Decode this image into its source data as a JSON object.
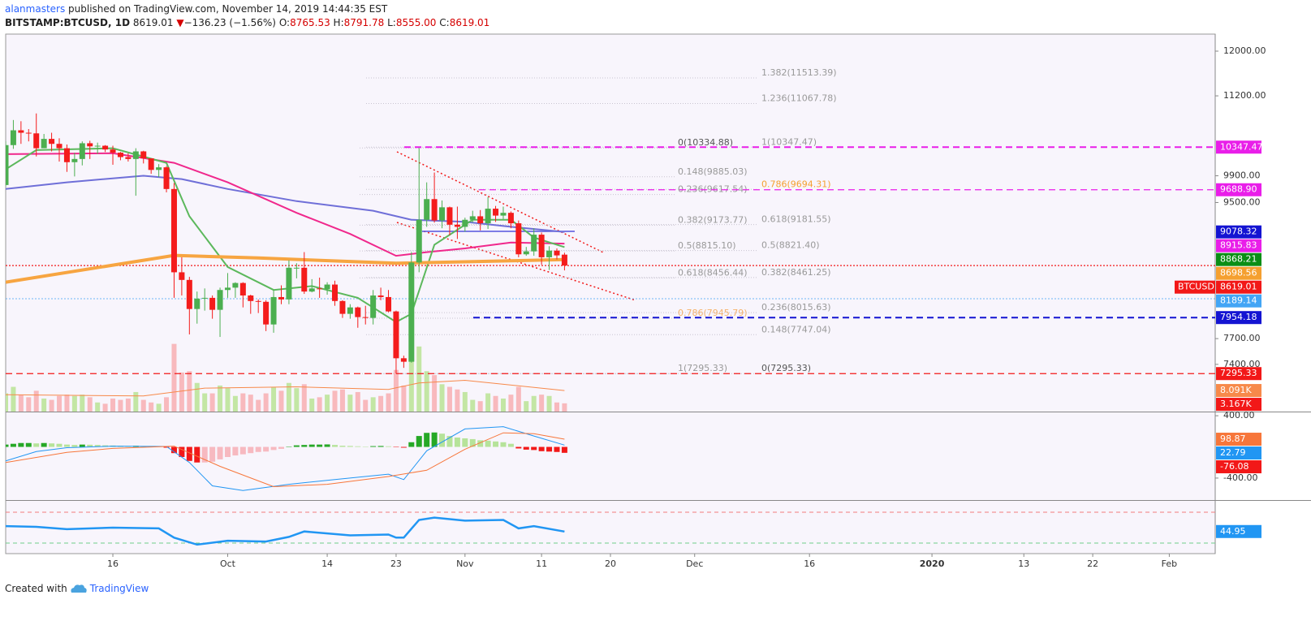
{
  "header": {
    "author": "alanmasters",
    "published": "published on TradingView.com, November 14, 2019 14:44:35 EST",
    "symbol": "BITSTAMP:BTCUSD, 1D",
    "last": "8619.01",
    "arrow": "▼",
    "change": "−136.23 (−1.56%)",
    "o_label": "O:",
    "o": "8765.53",
    "h_label": "H:",
    "h": "8791.78",
    "l_label": "L:",
    "l": "8555.00",
    "c_label": "C:",
    "c": "8619.01"
  },
  "footer": {
    "created": "Created with",
    "brand": "TradingView"
  },
  "chart_data": {
    "type": "candlestick",
    "log_scale": true,
    "up_color": "#4caf50",
    "down_color": "#f41c1c",
    "xlim": [
      "2019-09-02",
      "2020-02-07"
    ],
    "xticks": [
      {
        "value": "2019-09-16",
        "label": "16"
      },
      {
        "value": "2019-10-01",
        "label": "Oct"
      },
      {
        "value": "2019-10-14",
        "label": "14"
      },
      {
        "value": "2019-10-23",
        "label": "23"
      },
      {
        "value": "2019-11-01",
        "label": "Nov"
      },
      {
        "value": "2019-11-11",
        "label": "11"
      },
      {
        "value": "2019-11-20",
        "label": "20"
      },
      {
        "value": "2019-12-01",
        "label": "Dec"
      },
      {
        "value": "2019-12-16",
        "label": "16"
      },
      {
        "value": "2020-01-01",
        "label": "2020"
      },
      {
        "value": "2020-01-13",
        "label": "13"
      },
      {
        "value": "2020-01-22",
        "label": "22"
      },
      {
        "value": "2020-02-01",
        "label": "Feb"
      }
    ],
    "ylim": [
      6880,
      12320
    ],
    "yticks": [
      {
        "value": 12000,
        "label": "12000.00"
      },
      {
        "value": 11200,
        "label": "11200.00"
      },
      {
        "value": 9900,
        "label": "9900.00"
      },
      {
        "value": 9500,
        "label": "9500.00"
      },
      {
        "value": 7700,
        "label": "7700.00"
      },
      {
        "value": 7400,
        "label": "7400.00"
      }
    ],
    "x": [
      "2019-09-02",
      "2019-09-03",
      "2019-09-04",
      "2019-09-05",
      "2019-09-06",
      "2019-09-07",
      "2019-09-08",
      "2019-09-09",
      "2019-09-10",
      "2019-09-11",
      "2019-09-12",
      "2019-09-13",
      "2019-09-14",
      "2019-09-15",
      "2019-09-16",
      "2019-09-17",
      "2019-09-18",
      "2019-09-19",
      "2019-09-20",
      "2019-09-21",
      "2019-09-22",
      "2019-09-23",
      "2019-09-24",
      "2019-09-25",
      "2019-09-26",
      "2019-09-27",
      "2019-09-28",
      "2019-09-29",
      "2019-09-30",
      "2019-10-01",
      "2019-10-02",
      "2019-10-03",
      "2019-10-04",
      "2019-10-05",
      "2019-10-06",
      "2019-10-07",
      "2019-10-08",
      "2019-10-09",
      "2019-10-10",
      "2019-10-11",
      "2019-10-12",
      "2019-10-13",
      "2019-10-14",
      "2019-10-15",
      "2019-10-16",
      "2019-10-17",
      "2019-10-18",
      "2019-10-19",
      "2019-10-20",
      "2019-10-21",
      "2019-10-22",
      "2019-10-23",
      "2019-10-24",
      "2019-10-25",
      "2019-10-26",
      "2019-10-27",
      "2019-10-28",
      "2019-10-29",
      "2019-10-30",
      "2019-10-31",
      "2019-11-01",
      "2019-11-02",
      "2019-11-03",
      "2019-11-04",
      "2019-11-05",
      "2019-11-06",
      "2019-11-07",
      "2019-11-08",
      "2019-11-09",
      "2019-11-10",
      "2019-11-11",
      "2019-11-12",
      "2019-11-13",
      "2019-11-14"
    ],
    "open": [
      9760,
      10380,
      10620,
      10580,
      10570,
      10330,
      10480,
      10400,
      10330,
      10110,
      10160,
      10410,
      10360,
      10370,
      10310,
      10260,
      10190,
      10160,
      10280,
      10170,
      9990,
      10030,
      9700,
      8530,
      8430,
      8060,
      8190,
      8200,
      8050,
      8300,
      8330,
      8390,
      8230,
      8160,
      8150,
      7870,
      8210,
      8180,
      8590,
      8590,
      8280,
      8320,
      8310,
      8370,
      8160,
      8000,
      8080,
      7960,
      7950,
      8230,
      8210,
      8030,
      7470,
      7430,
      8660,
      9250,
      9550,
      9240,
      9430,
      9180,
      9150,
      9250,
      9300,
      9200,
      9410,
      9310,
      9350,
      9200,
      8770,
      8810,
      9040,
      8730,
      8820,
      8765.53
    ],
    "high": [
      10440,
      10790,
      10770,
      10640,
      10900,
      10560,
      10580,
      10490,
      10390,
      10260,
      10440,
      10450,
      10420,
      10380,
      10370,
      10270,
      10250,
      10330,
      10290,
      10170,
      10080,
      10050,
      9790,
      8730,
      8470,
      8280,
      8320,
      8230,
      8330,
      8520,
      8400,
      8400,
      8240,
      8180,
      8170,
      8300,
      8360,
      8690,
      8650,
      8800,
      8440,
      8460,
      8400,
      8420,
      8170,
      8120,
      8090,
      8100,
      8300,
      8330,
      8300,
      8040,
      7500,
      8800,
      10334.88,
      9800,
      9950,
      9530,
      9440,
      9440,
      9280,
      9380,
      9390,
      9580,
      9450,
      9440,
      9370,
      9240,
      8870,
      9130,
      9070,
      8880,
      8850,
      8791.78
    ],
    "low": [
      9740,
      10320,
      10400,
      10440,
      10200,
      10330,
      10280,
      10120,
      9960,
      9890,
      10060,
      10160,
      10240,
      10270,
      10070,
      10140,
      10120,
      9600,
      10090,
      9930,
      9880,
      9650,
      8200,
      8230,
      7750,
      7880,
      8040,
      7940,
      7720,
      8200,
      8200,
      8080,
      8000,
      8010,
      7790,
      7770,
      8120,
      8120,
      8450,
      8250,
      8270,
      8200,
      8240,
      8100,
      7950,
      7940,
      7830,
      7870,
      7870,
      8170,
      8020,
      7295.33,
      7360,
      7420,
      8530,
      9150,
      9210,
      9130,
      9030,
      8980,
      9080,
      9210,
      9100,
      9120,
      9220,
      9260,
      9130,
      8730,
      8750,
      8750,
      8630,
      8560,
      8700,
      8555
    ],
    "close": [
      10380,
      10620,
      10580,
      10570,
      10330,
      10480,
      10400,
      10330,
      10110,
      10160,
      10410,
      10360,
      10370,
      10310,
      10260,
      10190,
      10160,
      10280,
      10170,
      9990,
      10030,
      9700,
      8530,
      8430,
      8060,
      8190,
      8200,
      8050,
      8300,
      8330,
      8390,
      8230,
      8160,
      8150,
      7870,
      8210,
      8180,
      8590,
      8590,
      8280,
      8320,
      8310,
      8370,
      8160,
      8000,
      8080,
      7960,
      7950,
      8230,
      8210,
      8030,
      7470,
      7430,
      8660,
      9250,
      9550,
      9240,
      9430,
      9180,
      9150,
      9250,
      9300,
      9200,
      9410,
      9310,
      9350,
      9200,
      8770,
      8810,
      9040,
      8730,
      8820,
      8755.24,
      8619.01
    ],
    "moving_averages": [
      {
        "color": "#6f6fd8",
        "x": [
          "2019-09-02",
          "2019-09-10",
          "2019-09-20",
          "2019-09-25",
          "2019-10-01",
          "2019-10-10",
          "2019-10-20",
          "2019-10-25",
          "2019-11-01",
          "2019-11-07",
          "2019-11-14"
        ],
        "values": [
          9700,
          9800,
          9900,
          9850,
          9700,
          9520,
          9380,
          9250,
          9220,
          9150,
          9078.32
        ]
      },
      {
        "color": "#f0288c",
        "x": [
          "2019-09-02",
          "2019-09-16",
          "2019-09-24",
          "2019-10-01",
          "2019-10-10",
          "2019-10-17",
          "2019-10-23",
          "2019-10-27",
          "2019-11-01",
          "2019-11-07",
          "2019-11-14"
        ],
        "values": [
          10236,
          10250,
          10100,
          9800,
          9350,
          9050,
          8750,
          8800,
          8850,
          8930,
          8915.83
        ]
      },
      {
        "color": "#5cb85c",
        "x": [
          "2019-09-02",
          "2019-09-06",
          "2019-09-16",
          "2019-09-23",
          "2019-09-26",
          "2019-10-01",
          "2019-10-07",
          "2019-10-12",
          "2019-10-18",
          "2019-10-23",
          "2019-10-25",
          "2019-10-28",
          "2019-11-02",
          "2019-11-07",
          "2019-11-10",
          "2019-11-14"
        ],
        "values": [
          10000,
          10300,
          10330,
          10100,
          9300,
          8600,
          8300,
          8350,
          8200,
          7900,
          8000,
          8900,
          9250,
          9250,
          9000,
          8868.21
        ]
      },
      {
        "color": "#f7a541",
        "width": 4,
        "x": [
          "2019-09-02",
          "2019-09-24",
          "2019-10-05",
          "2019-10-23",
          "2019-11-14"
        ],
        "values": [
          8400,
          8755,
          8720,
          8650,
          8698.56
        ]
      }
    ],
    "fib_left": [
      {
        "value": 10334.88,
        "label": "0(10334.88)",
        "color": "#555"
      },
      {
        "value": 9885.03,
        "label": "0.148(9885.03)",
        "color": "#999"
      },
      {
        "value": 9617.54,
        "label": "0.236(9617.54)",
        "color": "#999"
      },
      {
        "value": 9173.77,
        "label": "0.382(9173.77)",
        "color": "#999"
      },
      {
        "value": 8815.1,
        "label": "0.5(8815.10)",
        "color": "#999"
      },
      {
        "value": 8456.44,
        "label": "0.618(8456.44)",
        "color": "#999"
      },
      {
        "value": 7945.79,
        "label": "0.786(7945.79)",
        "color": "#f5b26b"
      },
      {
        "value": 7295.33,
        "label": "1(7295.33)",
        "color": "#999"
      }
    ],
    "fib_right": [
      {
        "value": 11513.39,
        "label": "1.382(11513.39)",
        "color": "#999"
      },
      {
        "value": 11067.78,
        "label": "1.236(11067.78)",
        "color": "#999"
      },
      {
        "value": 10347.47,
        "label": "1(10347.47)",
        "color": "#999"
      },
      {
        "value": 9694.31,
        "label": "0.786(9694.31)",
        "color": "#f5a030"
      },
      {
        "value": 9181.55,
        "label": "0.618(9181.55)",
        "color": "#999"
      },
      {
        "value": 8821.4,
        "label": "0.5(8821.40)",
        "color": "#999"
      },
      {
        "value": 8461.25,
        "label": "0.382(8461.25)",
        "color": "#999"
      },
      {
        "value": 8015.63,
        "label": "0.236(8015.63)",
        "color": "#999"
      },
      {
        "value": 7747.04,
        "label": "0.148(7747.04)",
        "color": "#999"
      },
      {
        "value": 7295.33,
        "label": "0(7295.33)",
        "color": "#555"
      }
    ],
    "symbol_tag": "BTCUSD",
    "price_labels": [
      {
        "value": 10347.47,
        "label": "10347.47",
        "color": "#e91ee9",
        "line": "dashed"
      },
      {
        "value": 9688.9,
        "label": "9688.90",
        "color": "#e91ee9",
        "line": "dashed"
      },
      {
        "value": 9078.32,
        "label": "9078.32",
        "color": "#1414d2"
      },
      {
        "value": 8915.83,
        "label": "8915.83",
        "color": "#e91ee9"
      },
      {
        "value": 8868.21,
        "label": "8868.21",
        "color": "#0b8e16"
      },
      {
        "value": 8698.56,
        "label": "8698.56",
        "color": "#f5a030"
      },
      {
        "value": 8619.01,
        "label": "8619.01",
        "color": "#f21818",
        "line": "dotted"
      },
      {
        "value": 8189.14,
        "label": "8189.14",
        "color": "#42a5f5",
        "line": "dotted"
      },
      {
        "value": 7954.18,
        "label": "7954.18",
        "color": "#1414d2",
        "line": "dashed"
      },
      {
        "value": 7295.33,
        "label": "7295.33",
        "color": "#f21818",
        "line": "dashed"
      }
    ],
    "volume": {
      "ylim": [
        0,
        145000
      ],
      "values": [
        7000,
        9500,
        6500,
        5500,
        8000,
        5000,
        4500,
        6000,
        6500,
        6000,
        6500,
        5500,
        3500,
        3000,
        5000,
        4500,
        5000,
        7500,
        4500,
        3500,
        3000,
        5500,
        26000,
        15000,
        15500,
        11000,
        7000,
        7000,
        10000,
        9000,
        6000,
        7000,
        6500,
        4500,
        7000,
        9500,
        8000,
        11000,
        9000,
        10500,
        5000,
        5500,
        6500,
        8000,
        8500,
        6500,
        7500,
        4500,
        5500,
        6000,
        7000,
        16000,
        10000,
        22000,
        25000,
        15500,
        14000,
        10500,
        9500,
        8500,
        7500,
        4500,
        4000,
        7000,
        6000,
        5000,
        6500,
        9500,
        4000,
        6000,
        6500,
        6000,
        3500,
        3167
      ],
      "ma": {
        "color": "#f7894a",
        "x": [
          "2019-09-02",
          "2019-09-20",
          "2019-09-28",
          "2019-10-10",
          "2019-10-22",
          "2019-10-26",
          "2019-11-01",
          "2019-11-14"
        ],
        "values": [
          6500,
          6000,
          9000,
          9500,
          8500,
          11000,
          12000,
          8091
        ]
      },
      "labels": [
        {
          "value": 8091,
          "label": "8.091K",
          "color": "#f7894a"
        },
        {
          "value": 3167,
          "label": "3.167K",
          "color": "#f21818"
        }
      ]
    },
    "macd": {
      "ylim": [
        -682,
        443
      ],
      "yticks": [
        {
          "value": 400,
          "label": "400.00"
        },
        {
          "value": -400,
          "label": "-400.00"
        }
      ],
      "histogram": [
        30,
        40,
        50,
        50,
        45,
        50,
        45,
        40,
        30,
        25,
        30,
        28,
        25,
        20,
        18,
        15,
        12,
        15,
        10,
        5,
        3,
        -10,
        -80,
        -130,
        -180,
        -200,
        -200,
        -190,
        -160,
        -130,
        -110,
        -95,
        -80,
        -65,
        -60,
        -40,
        -25,
        5,
        20,
        25,
        30,
        30,
        32,
        25,
        15,
        12,
        8,
        5,
        10,
        12,
        8,
        -5,
        -10,
        60,
        140,
        180,
        185,
        170,
        140,
        120,
        110,
        100,
        85,
        80,
        70,
        60,
        40,
        -20,
        -35,
        -40,
        -55,
        -60,
        -65,
        -76.08
      ],
      "macd_line": {
        "color": "#2196f3",
        "x": [
          "2019-09-02",
          "2019-09-06",
          "2019-09-10",
          "2019-09-16",
          "2019-09-23",
          "2019-09-26",
          "2019-09-29",
          "2019-10-03",
          "2019-10-09",
          "2019-10-15",
          "2019-10-22",
          "2019-10-24",
          "2019-10-27",
          "2019-11-01",
          "2019-11-06",
          "2019-11-10",
          "2019-11-14"
        ],
        "values": [
          -180,
          -60,
          -10,
          10,
          5,
          -200,
          -500,
          -560,
          -480,
          -420,
          -350,
          -420,
          -50,
          230,
          260,
          140,
          22.79
        ]
      },
      "signal_line": {
        "color": "#f7763a",
        "x": [
          "2019-09-02",
          "2019-09-10",
          "2019-09-16",
          "2019-09-24",
          "2019-09-30",
          "2019-10-07",
          "2019-10-14",
          "2019-10-22",
          "2019-10-27",
          "2019-11-01",
          "2019-11-06",
          "2019-11-10",
          "2019-11-14"
        ],
        "values": [
          -200,
          -70,
          -20,
          10,
          -250,
          -510,
          -480,
          -380,
          -300,
          -30,
          180,
          170,
          98.87
        ]
      },
      "labels": [
        {
          "value": 98.87,
          "label": "98.87",
          "color": "#f7763a"
        },
        {
          "value": 22.79,
          "label": "22.79",
          "color": "#2196f3"
        },
        {
          "value": -76.08,
          "label": "-76.08",
          "color": "#f21818"
        }
      ]
    },
    "rsi": {
      "ylim": [
        18.4,
        84.7
      ],
      "bands": [
        {
          "value": 70,
          "color": "#f27b7b"
        },
        {
          "value": 30,
          "color": "#6fcf8a"
        }
      ],
      "color": "#2196f3",
      "x": [
        "2019-09-02",
        "2019-09-06",
        "2019-09-10",
        "2019-09-16",
        "2019-09-22",
        "2019-09-24",
        "2019-09-27",
        "2019-10-01",
        "2019-10-06",
        "2019-10-09",
        "2019-10-11",
        "2019-10-17",
        "2019-10-22",
        "2019-10-23",
        "2019-10-24",
        "2019-10-26",
        "2019-10-28",
        "2019-11-01",
        "2019-11-06",
        "2019-11-08",
        "2019-11-10",
        "2019-11-14"
      ],
      "values": [
        52,
        51,
        48,
        50,
        49,
        37,
        28,
        33,
        32,
        38,
        45,
        40,
        41,
        37,
        37,
        60,
        63,
        59,
        60,
        49,
        52,
        44.95
      ],
      "labels": [
        {
          "value": 44.95,
          "label": "44.95",
          "color": "#2196f3"
        }
      ]
    }
  }
}
